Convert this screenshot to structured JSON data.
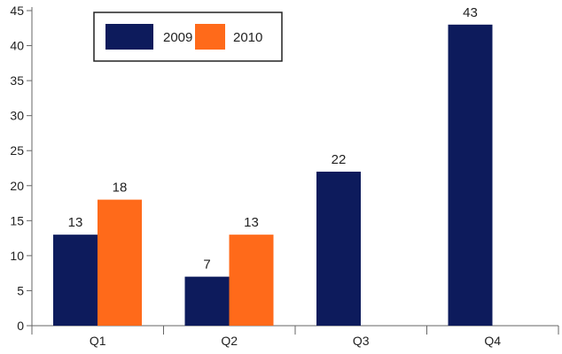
{
  "chart_data": {
    "type": "bar",
    "categories": [
      "Q1",
      "Q2",
      "Q3",
      "Q4"
    ],
    "series": [
      {
        "name": "2009",
        "values": [
          13,
          7,
          22,
          43
        ],
        "color": "#0d1b5c"
      },
      {
        "name": "2010",
        "values": [
          18,
          13,
          null,
          null
        ],
        "color": "#ff6a1a"
      }
    ],
    "y_ticks": [
      "0",
      "5",
      "10",
      "15",
      "20",
      "25",
      "30",
      "35",
      "40",
      "45"
    ],
    "ylim": [
      0,
      45
    ],
    "data_labels": true,
    "legend_position": "top-left",
    "grid": false,
    "title": "",
    "xlabel": "",
    "ylabel": ""
  }
}
